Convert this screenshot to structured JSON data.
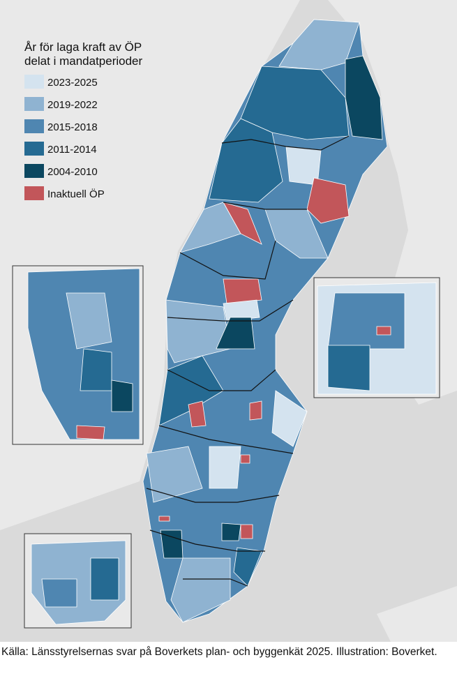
{
  "legend": {
    "title_lines": [
      "År för laga kraft av ÖP",
      "delat i mandatperioder"
    ],
    "items": [
      {
        "label": "2023-2025",
        "color": "#d4e3ef"
      },
      {
        "label": "2019-2022",
        "color": "#8fb3d1"
      },
      {
        "label": "2015-2018",
        "color": "#4f86b1"
      },
      {
        "label": "2011-2014",
        "color": "#256a92"
      },
      {
        "label": "2004-2010",
        "color": "#0b4760"
      },
      {
        "label": "Inaktuell ÖP",
        "color": "#c2565a"
      }
    ]
  },
  "caption": "Källa: Länsstyrelsernas svar på Boverkets plan- och byggenkät 2025. Illustration: Boverket."
}
